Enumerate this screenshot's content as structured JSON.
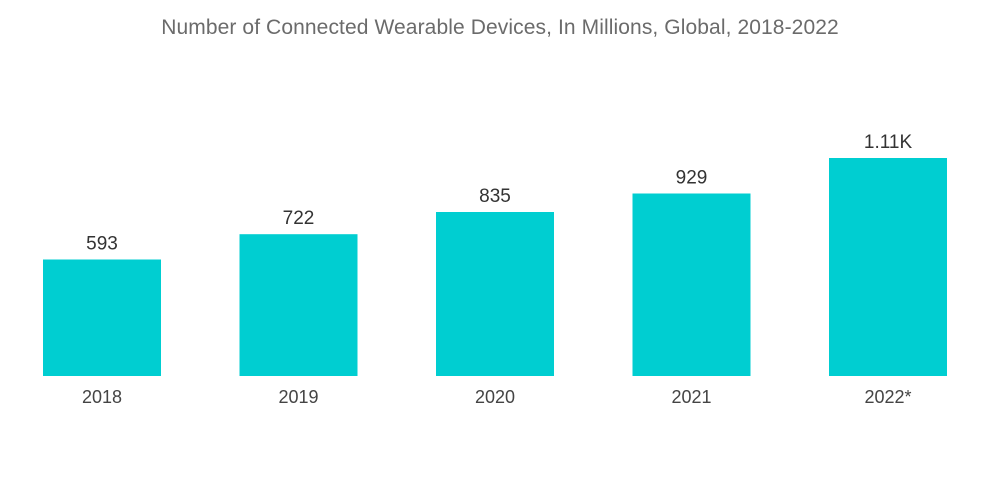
{
  "chart_data": {
    "type": "bar",
    "title": "Number of Connected Wearable Devices, In Millions, Global, 2018-2022",
    "categories": [
      "2018",
      "2019",
      "2020",
      "2021",
      "2022*"
    ],
    "values": [
      593,
      722,
      835,
      929,
      1110
    ],
    "value_labels": [
      "593",
      "722",
      "835",
      "929",
      "1.11K"
    ],
    "xlabel": "",
    "ylabel": "",
    "ylim": [
      0,
      1200
    ],
    "grid": false,
    "legend": "none",
    "bar_color": "#00CED1"
  }
}
